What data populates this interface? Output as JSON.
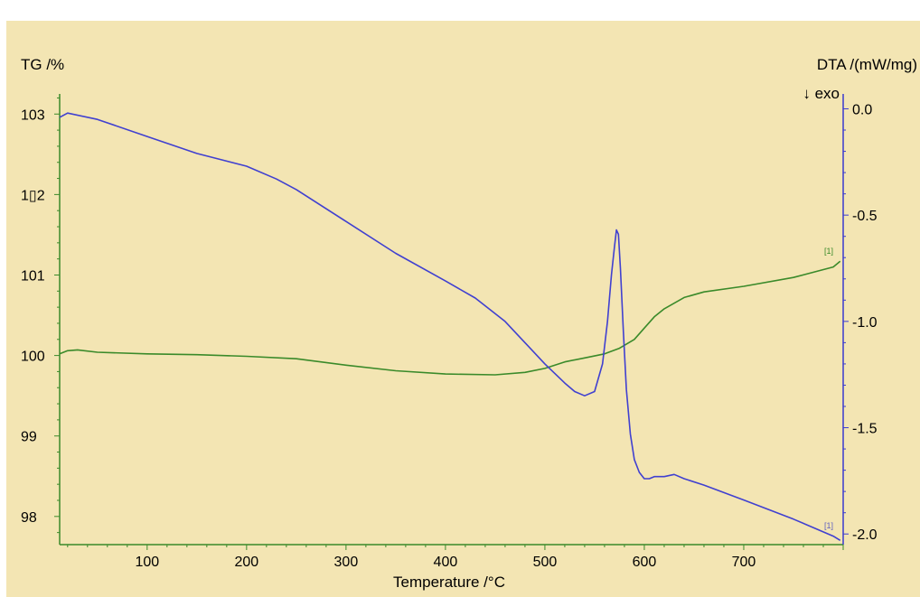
{
  "chart_data": {
    "type": "line",
    "xlabel": "Temperature /°C",
    "ylabel_left": "TG /%",
    "ylabel_right": "DTA /(mW/mg)",
    "exo_note": "↓ exo",
    "x_range": [
      12,
      800
    ],
    "y_left_range": [
      97.65,
      103.25
    ],
    "y_right_range": [
      -2.05,
      0.07
    ],
    "x_ticks": [
      "100",
      "200",
      "300",
      "400",
      "500",
      "600",
      "700"
    ],
    "y_left_ticks": [
      "98",
      "99",
      "100",
      "101",
      "1▯2",
      "103"
    ],
    "y_right_ticks": [
      "0.0",
      "-0.5",
      "-1.0",
      "-1.5",
      "-2.0"
    ],
    "colors": {
      "background": "#f3e5b3",
      "tg": "#3a8a2a",
      "dta": "#4040d0",
      "axis_left": "#3a8a2a",
      "axis_right": "#3a3ad0"
    },
    "series": [
      {
        "name": "[1]",
        "axis": "left",
        "color": "#3a8a2a",
        "x": [
          12,
          20,
          30,
          50,
          100,
          150,
          200,
          250,
          300,
          350,
          400,
          450,
          480,
          500,
          520,
          540,
          560,
          575,
          590,
          600,
          610,
          620,
          640,
          660,
          700,
          750,
          790,
          797
        ],
        "y": [
          100.02,
          100.06,
          100.07,
          100.04,
          100.02,
          100.01,
          99.99,
          99.96,
          99.88,
          99.81,
          99.77,
          99.76,
          99.79,
          99.84,
          99.92,
          99.97,
          100.02,
          100.09,
          100.2,
          100.34,
          100.48,
          100.58,
          100.72,
          100.79,
          100.86,
          100.97,
          101.1,
          101.17
        ]
      },
      {
        "name": "[1]",
        "axis": "right",
        "color": "#4040d0",
        "x": [
          12,
          20,
          50,
          100,
          150,
          200,
          230,
          250,
          300,
          350,
          400,
          430,
          460,
          480,
          500,
          520,
          530,
          540,
          550,
          558,
          563,
          567,
          570,
          572,
          574,
          576,
          579,
          582,
          586,
          590,
          595,
          600,
          605,
          610,
          620,
          630,
          640,
          660,
          700,
          750,
          790,
          797
        ],
        "y": [
          -0.04,
          -0.02,
          -0.05,
          -0.13,
          -0.21,
          -0.27,
          -0.33,
          -0.38,
          -0.53,
          -0.68,
          -0.81,
          -0.89,
          -1.0,
          -1.1,
          -1.2,
          -1.29,
          -1.33,
          -1.35,
          -1.33,
          -1.2,
          -1.0,
          -0.78,
          -0.65,
          -0.57,
          -0.59,
          -0.75,
          -1.05,
          -1.32,
          -1.53,
          -1.65,
          -1.71,
          -1.74,
          -1.74,
          -1.73,
          -1.73,
          -1.72,
          -1.74,
          -1.77,
          -1.84,
          -1.93,
          -2.01,
          -2.03
        ]
      }
    ]
  }
}
